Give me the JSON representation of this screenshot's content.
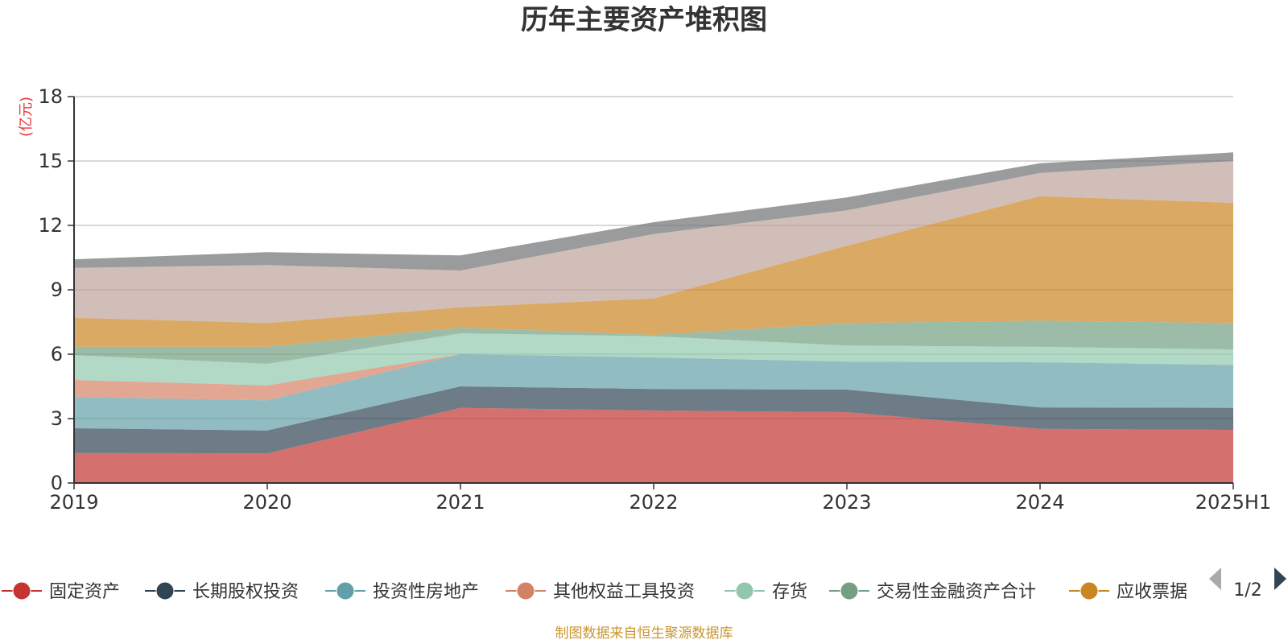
{
  "title": "历年主要资产堆积图",
  "source": "制图数据来自恒生聚源数据库",
  "chart_data": {
    "type": "area",
    "stacked": true,
    "title": "历年主要资产堆积图",
    "unit": "(亿元)",
    "categories": [
      "2019",
      "2020",
      "2021",
      "2022",
      "2023",
      "2024",
      "2025H1"
    ],
    "ylim": [
      0,
      18
    ],
    "yticks": [
      "0",
      "3",
      "6",
      "9",
      "12",
      "15",
      "18"
    ],
    "grid": true,
    "legend_position": "bottom",
    "series": [
      {
        "name": "固定资产",
        "color": "#c23531",
        "values": [
          1.4,
          1.38,
          3.5,
          3.38,
          3.3,
          2.52,
          2.47
        ]
      },
      {
        "name": "长期股权投资",
        "color": "#2f4554",
        "values": [
          1.15,
          1.07,
          1.0,
          1.0,
          1.05,
          1.0,
          1.03
        ]
      },
      {
        "name": "投资性房地产",
        "color": "#61a0a8",
        "values": [
          1.45,
          1.4,
          1.5,
          1.47,
          1.3,
          2.1,
          2.0
        ]
      },
      {
        "name": "其他权益工具投资",
        "color": "#d48265",
        "values": [
          0.8,
          0.7,
          0.0,
          0.0,
          0.0,
          0.0,
          0.0
        ]
      },
      {
        "name": "存货",
        "color": "#91c7ae",
        "values": [
          1.15,
          1.0,
          0.97,
          0.99,
          0.75,
          0.72,
          0.72
        ]
      },
      {
        "name": "交易性金融资产合计",
        "color": "#749f83",
        "values": [
          0.4,
          0.8,
          0.27,
          0.06,
          1.05,
          1.22,
          1.23
        ]
      },
      {
        "name": "应收票据",
        "color": "#ca8622",
        "values": [
          1.35,
          1.1,
          0.95,
          1.7,
          3.6,
          5.8,
          5.6
        ]
      },
      {
        "name": "",
        "color": "#bda29a",
        "values": [
          2.32,
          2.7,
          1.71,
          3.0,
          1.65,
          1.08,
          1.95
        ]
      },
      {
        "name": "",
        "color": "#6e7074",
        "values": [
          0.4,
          0.6,
          0.7,
          0.55,
          0.6,
          0.46,
          0.4
        ]
      }
    ]
  },
  "legend": {
    "visible_count": 7,
    "page": "1/2"
  }
}
